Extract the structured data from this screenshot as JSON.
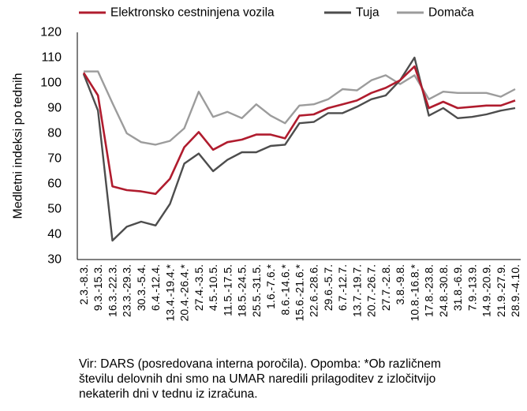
{
  "chart_data": {
    "type": "line",
    "ylabel": "Medletni indeksi po tednih",
    "xlabel": "",
    "ylim": [
      30,
      120
    ],
    "yticks": [
      30,
      40,
      50,
      60,
      70,
      80,
      90,
      100,
      110,
      120
    ],
    "grid": false,
    "legend_position": "top",
    "categories": [
      "2.3.-8.3.",
      "9.3.-15.3.",
      "16.3.-22.3.",
      "23.3.-29.3.",
      "30.3.-5.4.",
      "6.4.-12.4.",
      "13.4.-19.4.*",
      "20.4.-26.4.*",
      "27.4.-3.5.",
      "4.5.-10.5.",
      "11.5.-17.5.",
      "18.5.-24.5.",
      "25.5.-31.5.",
      "1.6.-7.6.*",
      "8.6.-14.6.*",
      "15.6.-21.6.*",
      "22.6.-28.6.",
      "29.6.-5.7.",
      "6.7.-12.7.",
      "13.7.-19.7.",
      "20.7.-26.7.",
      "27.7.-2.8.",
      "3.8.-9.8.",
      "10.8.-16.8.*",
      "17.8.-23.8.",
      "24.8.-30.8.",
      "31.8.-6.9.",
      "7.9.-13.9.",
      "14.9.-20.9.",
      "21.9.-27.9.",
      "28.9.-4.10."
    ],
    "series": [
      {
        "name": "Elektronsko cestninjena vozila",
        "color": "#b01c2e",
        "values": [
          104,
          95,
          59,
          57.5,
          57,
          56,
          62,
          74.5,
          80.5,
          73.5,
          76.5,
          77.5,
          79.5,
          79.5,
          78,
          87,
          87.5,
          90,
          91.5,
          93,
          96,
          98,
          101,
          106.5,
          90,
          92.5,
          90,
          90.5,
          91,
          91,
          93
        ]
      },
      {
        "name": "Tuja",
        "color": "#4d4d4d",
        "values": [
          103.5,
          89,
          37.5,
          43,
          45,
          43.5,
          52,
          68,
          72,
          65,
          69.5,
          72.5,
          72.5,
          75,
          75.5,
          84,
          84.5,
          88,
          88,
          90.5,
          93.5,
          95,
          101,
          110,
          87,
          90,
          86,
          86.5,
          87.5,
          89,
          90
        ]
      },
      {
        "name": "Domača",
        "color": "#9c9c9c",
        "values": [
          104.5,
          104.5,
          92,
          80,
          76.5,
          75.5,
          77,
          82,
          96.5,
          86.5,
          88.5,
          86,
          91.5,
          87,
          84,
          91,
          91.5,
          93.5,
          97.5,
          97,
          101,
          103,
          99.5,
          103,
          93.5,
          96.5,
          96,
          96,
          96,
          94.5,
          97.5
        ]
      }
    ]
  },
  "note": {
    "line1": "Vir: DARS (posredovana interna poročila). Opomba: *Ob različnem",
    "line2": "številu delovnih dni smo na UMAR naredili prilagoditev z izločitvijo",
    "line3": "nekaterih dni v tednu iz izračuna."
  }
}
